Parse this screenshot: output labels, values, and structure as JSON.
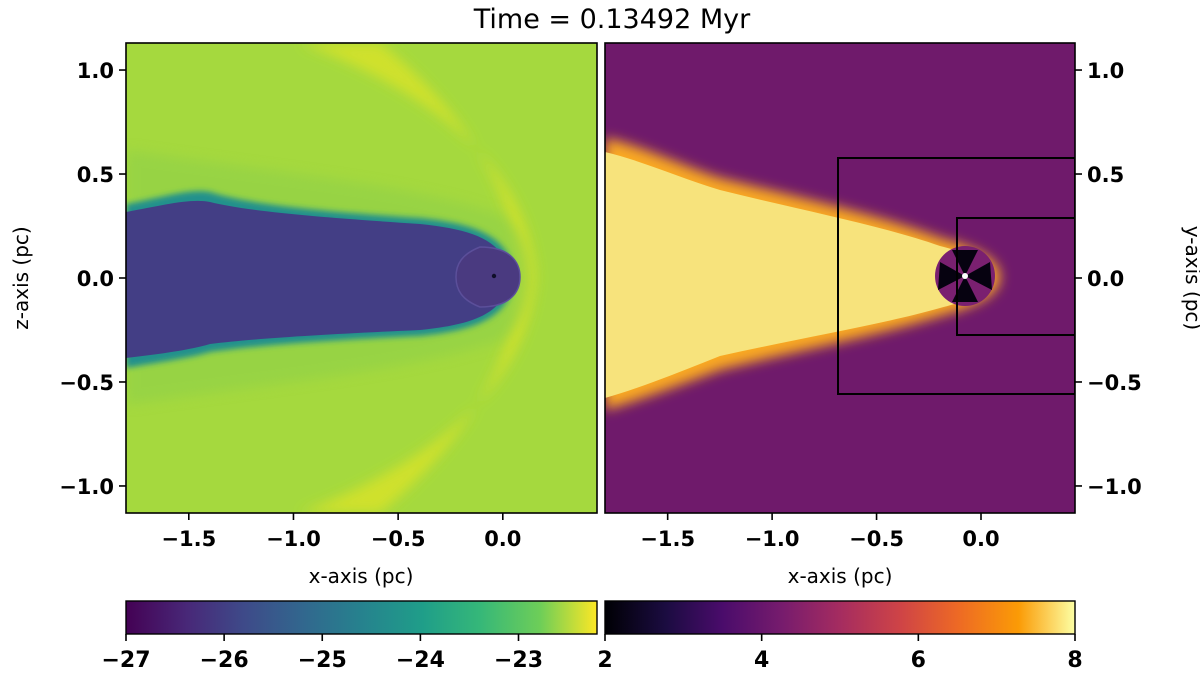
{
  "title": "Time = 0.13492 Myr",
  "chart_data": [
    {
      "type": "heatmap",
      "panel": "left",
      "colormap": "viridis",
      "xlabel": "x-axis (pc)",
      "ylabel": "z-axis (pc)",
      "xlim": [
        -1.8,
        0.45
      ],
      "ylim": [
        -1.13,
        1.13
      ],
      "xticks": [
        -1.5,
        -1.0,
        -0.5,
        0.0
      ],
      "xtick_labels": [
        "−1.5",
        "−1.0",
        "−0.5",
        "0.0"
      ],
      "yticks": [
        1.0,
        0.5,
        0.0,
        -0.5,
        -1.0
      ],
      "ytick_labels": [
        "1.0",
        "0.5",
        "0.0",
        "−0.5",
        "−1.0"
      ],
      "colorbar": {
        "range": [
          -27,
          -22.2
        ],
        "ticks": [
          -27,
          -26,
          -25,
          -24,
          -23
        ],
        "tick_labels": [
          "−27",
          "−26",
          "−25",
          "−24",
          "−23"
        ]
      },
      "features": {
        "ambient_value": -22.6,
        "tail_value": -26.3,
        "bow_shock_value": -22.4,
        "bow_shock_apex_x": 0.18,
        "tail_half_width": 0.32
      }
    },
    {
      "type": "heatmap",
      "panel": "right",
      "colormap": "inferno",
      "xlabel": "x-axis (pc)",
      "ylabel": "y-axis (pc)",
      "xlim": [
        -1.8,
        0.45
      ],
      "ylim": [
        -1.13,
        1.13
      ],
      "xticks": [
        -1.5,
        -1.0,
        -0.5,
        0.0
      ],
      "xtick_labels": [
        "−1.5",
        "−1.0",
        "−0.5",
        "0.0"
      ],
      "yticks": [
        1.0,
        0.5,
        0.0,
        -0.5,
        -1.0
      ],
      "ytick_labels": [
        "1.0",
        "0.5",
        "0.0",
        "−0.5",
        "−1.0"
      ],
      "colorbar": {
        "range": [
          2,
          8
        ],
        "ticks": [
          2,
          4,
          6,
          8
        ],
        "tick_labels": [
          "2",
          "4",
          "6",
          "8"
        ]
      },
      "features": {
        "ambient_value": 3.8,
        "tail_value": 7.6,
        "zoom_boxes": [
          {
            "x0": -0.65,
            "x1": 0.45,
            "y0": -0.56,
            "y1": 0.56
          },
          {
            "x0": -0.08,
            "x1": 0.45,
            "y0": -0.28,
            "y1": 0.28
          }
        ]
      }
    }
  ]
}
